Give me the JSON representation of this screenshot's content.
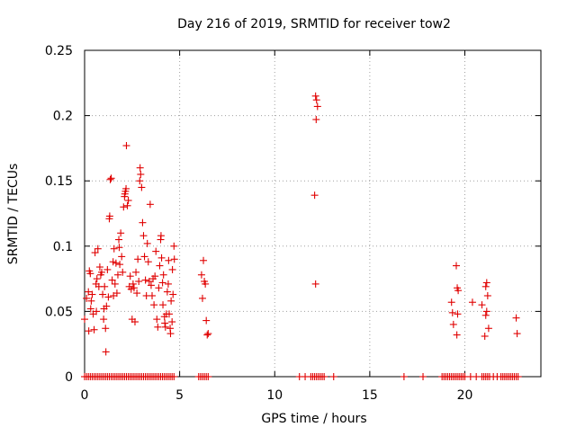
{
  "chart_data": {
    "type": "scatter",
    "title": "Day 216 of 2019, SRMTID for receiver tow2",
    "xlabel": "GPS time / hours",
    "ylabel": "SRMTID / TECUs",
    "xlim": [
      0,
      24
    ],
    "ylim": [
      0,
      0.25
    ],
    "xticks": [
      0,
      5,
      10,
      15,
      20
    ],
    "yticks": [
      0,
      0.05,
      0.1,
      0.15,
      0.2,
      0.25
    ],
    "ytick_labels": [
      "0",
      "0.05",
      "0.1",
      "0.15",
      "0.2",
      "0.25"
    ],
    "grid": true,
    "marker": "+",
    "color": "#e00000",
    "series": [
      {
        "name": "SRMTID",
        "points": [
          [
            0.0,
            0.044
          ],
          [
            0.1,
            0.06
          ],
          [
            0.2,
            0.065
          ],
          [
            0.22,
            0.035
          ],
          [
            0.25,
            0.081
          ],
          [
            0.3,
            0.079
          ],
          [
            0.32,
            0.052
          ],
          [
            0.35,
            0.058
          ],
          [
            0.4,
            0.063
          ],
          [
            0.45,
            0.048
          ],
          [
            0.5,
            0.036
          ],
          [
            0.55,
            0.095
          ],
          [
            0.6,
            0.071
          ],
          [
            0.62,
            0.05
          ],
          [
            0.65,
            0.075
          ],
          [
            0.7,
            0.098
          ],
          [
            0.75,
            0.069
          ],
          [
            0.8,
            0.084
          ],
          [
            0.85,
            0.078
          ],
          [
            0.9,
            0.08
          ],
          [
            0.95,
            0.063
          ],
          [
            1.0,
            0.044
          ],
          [
            1.02,
            0.052
          ],
          [
            1.05,
            0.069
          ],
          [
            1.1,
            0.037
          ],
          [
            1.12,
            0.019
          ],
          [
            1.15,
            0.054
          ],
          [
            1.2,
            0.082
          ],
          [
            1.25,
            0.061
          ],
          [
            1.3,
            0.121
          ],
          [
            1.32,
            0.123
          ],
          [
            1.35,
            0.151
          ],
          [
            1.4,
            0.152
          ],
          [
            1.45,
            0.074
          ],
          [
            1.5,
            0.088
          ],
          [
            1.52,
            0.062
          ],
          [
            1.55,
            0.098
          ],
          [
            1.6,
            0.071
          ],
          [
            1.65,
            0.087
          ],
          [
            1.7,
            0.064
          ],
          [
            1.75,
            0.078
          ],
          [
            1.8,
            0.105
          ],
          [
            1.82,
            0.099
          ],
          [
            1.85,
            0.086
          ],
          [
            1.9,
            0.11
          ],
          [
            1.95,
            0.092
          ],
          [
            2.0,
            0.08
          ],
          [
            2.05,
            0.13
          ],
          [
            2.1,
            0.138
          ],
          [
            2.12,
            0.14
          ],
          [
            2.15,
            0.142
          ],
          [
            2.18,
            0.144
          ],
          [
            2.2,
            0.177
          ],
          [
            2.25,
            0.131
          ],
          [
            2.3,
            0.135
          ],
          [
            2.35,
            0.069
          ],
          [
            2.4,
            0.077
          ],
          [
            2.45,
            0.067
          ],
          [
            2.5,
            0.044
          ],
          [
            2.55,
            0.071
          ],
          [
            2.6,
            0.068
          ],
          [
            2.65,
            0.042
          ],
          [
            2.7,
            0.08
          ],
          [
            2.75,
            0.064
          ],
          [
            2.8,
            0.09
          ],
          [
            2.85,
            0.073
          ],
          [
            2.9,
            0.15
          ],
          [
            2.92,
            0.16
          ],
          [
            2.95,
            0.155
          ],
          [
            3.0,
            0.145
          ],
          [
            3.05,
            0.118
          ],
          [
            3.1,
            0.108
          ],
          [
            3.15,
            0.092
          ],
          [
            3.2,
            0.074
          ],
          [
            3.25,
            0.062
          ],
          [
            3.3,
            0.102
          ],
          [
            3.35,
            0.088
          ],
          [
            3.4,
            0.073
          ],
          [
            3.45,
            0.132
          ],
          [
            3.5,
            0.07
          ],
          [
            3.55,
            0.062
          ],
          [
            3.6,
            0.075
          ],
          [
            3.65,
            0.055
          ],
          [
            3.7,
            0.077
          ],
          [
            3.75,
            0.096
          ],
          [
            3.8,
            0.044
          ],
          [
            3.85,
            0.038
          ],
          [
            3.9,
            0.068
          ],
          [
            3.95,
            0.085
          ],
          [
            4.0,
            0.105
          ],
          [
            4.02,
            0.108
          ],
          [
            4.05,
            0.091
          ],
          [
            4.1,
            0.072
          ],
          [
            4.12,
            0.055
          ],
          [
            4.15,
            0.078
          ],
          [
            4.2,
            0.046
          ],
          [
            4.22,
            0.041
          ],
          [
            4.25,
            0.038
          ],
          [
            4.3,
            0.048
          ],
          [
            4.35,
            0.065
          ],
          [
            4.4,
            0.071
          ],
          [
            4.42,
            0.089
          ],
          [
            4.45,
            0.048
          ],
          [
            4.5,
            0.037
          ],
          [
            4.52,
            0.033
          ],
          [
            4.55,
            0.058
          ],
          [
            4.6,
            0.042
          ],
          [
            4.62,
            0.082
          ],
          [
            4.65,
            0.063
          ],
          [
            4.7,
            0.1
          ],
          [
            4.72,
            0.09
          ],
          [
            6.15,
            0.078
          ],
          [
            6.2,
            0.06
          ],
          [
            6.25,
            0.089
          ],
          [
            6.3,
            0.073
          ],
          [
            6.35,
            0.071
          ],
          [
            6.4,
            0.043
          ],
          [
            6.45,
            0.032
          ],
          [
            6.5,
            0.033
          ],
          [
            12.15,
            0.215
          ],
          [
            12.2,
            0.212
          ],
          [
            12.25,
            0.207
          ],
          [
            12.18,
            0.197
          ],
          [
            12.1,
            0.139
          ],
          [
            12.15,
            0.071
          ],
          [
            19.3,
            0.057
          ],
          [
            19.35,
            0.049
          ],
          [
            19.4,
            0.04
          ],
          [
            19.55,
            0.085
          ],
          [
            19.6,
            0.068
          ],
          [
            19.65,
            0.066
          ],
          [
            19.62,
            0.048
          ],
          [
            19.58,
            0.032
          ],
          [
            20.4,
            0.057
          ],
          [
            20.9,
            0.055
          ],
          [
            21.1,
            0.069
          ],
          [
            21.15,
            0.072
          ],
          [
            21.2,
            0.062
          ],
          [
            21.15,
            0.05
          ],
          [
            21.1,
            0.047
          ],
          [
            21.25,
            0.037
          ],
          [
            21.05,
            0.031
          ],
          [
            22.7,
            0.045
          ],
          [
            22.75,
            0.033
          ]
        ],
        "zero_x": [
          0.0,
          0.1,
          0.2,
          0.3,
          0.4,
          0.5,
          0.6,
          0.7,
          0.8,
          0.9,
          1.0,
          1.1,
          1.2,
          1.3,
          1.4,
          1.5,
          1.6,
          1.7,
          1.8,
          1.9,
          2.0,
          2.1,
          2.2,
          2.3,
          2.4,
          2.5,
          2.6,
          2.7,
          2.8,
          2.9,
          3.0,
          3.1,
          3.2,
          3.3,
          3.4,
          3.5,
          3.6,
          3.7,
          3.8,
          3.9,
          4.0,
          4.1,
          4.2,
          4.3,
          4.4,
          4.5,
          4.6,
          4.7,
          6.0,
          6.1,
          6.2,
          6.3,
          6.4,
          6.5,
          11.3,
          11.6,
          11.9,
          12.0,
          12.1,
          12.2,
          12.3,
          12.4,
          12.5,
          12.6,
          13.1,
          16.8,
          17.8,
          18.8,
          18.9,
          19.0,
          19.1,
          19.2,
          19.3,
          19.4,
          19.5,
          19.6,
          19.7,
          19.8,
          19.9,
          20.0,
          20.3,
          20.6,
          20.9,
          21.0,
          21.1,
          21.2,
          21.3,
          21.5,
          21.7,
          21.9,
          22.0,
          22.1,
          22.2,
          22.3,
          22.4,
          22.5,
          22.6,
          22.7,
          22.8
        ]
      }
    ]
  }
}
